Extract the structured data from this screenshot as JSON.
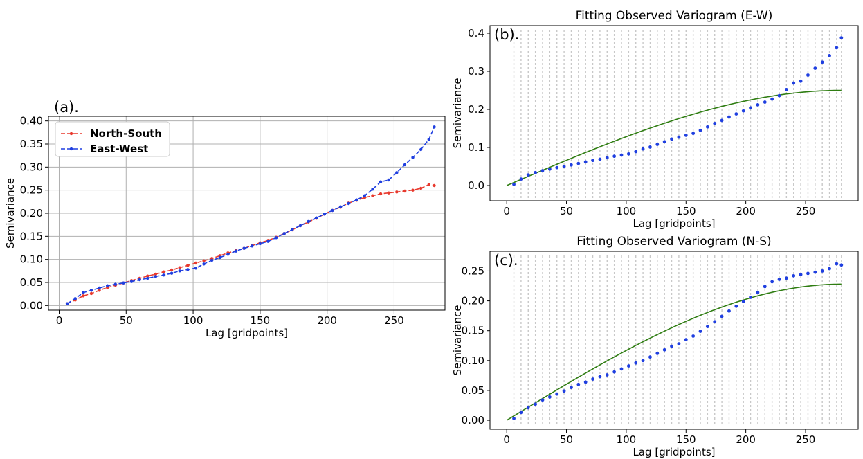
{
  "chart_data": [
    {
      "type": "line",
      "panel_label": "(a).",
      "title": "",
      "xlabel": "Lag [gridpoints]",
      "ylabel": "Semivariance",
      "xlim": [
        -8,
        288
      ],
      "ylim": [
        -0.01,
        0.41
      ],
      "xticks": [
        0,
        50,
        100,
        150,
        200,
        250
      ],
      "yticks": [
        0.0,
        0.05,
        0.1,
        0.15,
        0.2,
        0.25,
        0.3,
        0.35,
        0.4
      ],
      "ytick_decimals": 2,
      "grid": true,
      "legend": "upper-left",
      "series": [
        {
          "name": "North-South",
          "color": "#e8392d",
          "x": [
            6,
            12,
            18,
            24,
            30,
            36,
            42,
            48,
            54,
            60,
            66,
            72,
            78,
            84,
            90,
            96,
            102,
            108,
            114,
            120,
            126,
            132,
            138,
            144,
            150,
            156,
            162,
            168,
            174,
            180,
            186,
            192,
            198,
            204,
            210,
            216,
            222,
            228,
            234,
            240,
            246,
            252,
            258,
            264,
            270,
            276,
            280
          ],
          "y": [
            0.004,
            0.012,
            0.021,
            0.026,
            0.033,
            0.039,
            0.044,
            0.049,
            0.054,
            0.059,
            0.064,
            0.068,
            0.073,
            0.077,
            0.082,
            0.087,
            0.092,
            0.097,
            0.102,
            0.108,
            0.114,
            0.119,
            0.124,
            0.13,
            0.136,
            0.141,
            0.148,
            0.156,
            0.164,
            0.173,
            0.181,
            0.189,
            0.198,
            0.206,
            0.213,
            0.222,
            0.228,
            0.234,
            0.238,
            0.242,
            0.244,
            0.246,
            0.248,
            0.25,
            0.254,
            0.262,
            0.26
          ]
        },
        {
          "name": "East-West",
          "color": "#1f3fe0",
          "x": [
            6,
            12,
            18,
            24,
            30,
            36,
            42,
            48,
            54,
            60,
            66,
            72,
            78,
            84,
            90,
            96,
            102,
            108,
            114,
            120,
            126,
            132,
            138,
            144,
            150,
            156,
            162,
            168,
            174,
            180,
            186,
            192,
            198,
            204,
            210,
            216,
            222,
            228,
            234,
            240,
            246,
            252,
            258,
            264,
            270,
            276,
            280
          ],
          "y": [
            0.004,
            0.015,
            0.028,
            0.033,
            0.038,
            0.043,
            0.046,
            0.049,
            0.052,
            0.056,
            0.059,
            0.063,
            0.066,
            0.07,
            0.075,
            0.078,
            0.081,
            0.09,
            0.098,
            0.104,
            0.111,
            0.118,
            0.124,
            0.129,
            0.134,
            0.139,
            0.147,
            0.156,
            0.165,
            0.173,
            0.182,
            0.19,
            0.198,
            0.206,
            0.214,
            0.221,
            0.229,
            0.238,
            0.252,
            0.268,
            0.272,
            0.288,
            0.305,
            0.321,
            0.338,
            0.36,
            0.387
          ]
        }
      ]
    },
    {
      "type": "scatter",
      "panel_label": "(b).",
      "title": "Fitting Observed Variogram (E-W)",
      "xlabel": "Lag [gridpoints]",
      "ylabel": "Semivariance",
      "xlim": [
        -14,
        294
      ],
      "ylim": [
        -0.04,
        0.42
      ],
      "xticks": [
        0,
        50,
        100,
        150,
        200,
        250
      ],
      "yticks": [
        0.0,
        0.1,
        0.2,
        0.3,
        0.4
      ],
      "ytick_decimals": 1,
      "grid": false,
      "bin_lines_color": "#c8c8c8",
      "points": {
        "color": "#1f3fe0",
        "x": [
          6,
          12,
          18,
          24,
          30,
          36,
          42,
          48,
          54,
          60,
          66,
          72,
          78,
          84,
          90,
          96,
          102,
          108,
          114,
          120,
          126,
          132,
          138,
          144,
          150,
          156,
          162,
          168,
          174,
          180,
          186,
          192,
          198,
          204,
          210,
          216,
          222,
          228,
          234,
          240,
          246,
          252,
          258,
          264,
          270,
          276,
          280
        ],
        "y": [
          0.003,
          0.017,
          0.028,
          0.034,
          0.039,
          0.043,
          0.047,
          0.05,
          0.054,
          0.058,
          0.062,
          0.066,
          0.069,
          0.073,
          0.077,
          0.08,
          0.083,
          0.089,
          0.096,
          0.101,
          0.108,
          0.115,
          0.122,
          0.127,
          0.132,
          0.137,
          0.145,
          0.154,
          0.163,
          0.171,
          0.18,
          0.188,
          0.196,
          0.204,
          0.212,
          0.219,
          0.227,
          0.236,
          0.252,
          0.269,
          0.274,
          0.29,
          0.308,
          0.324,
          0.341,
          0.362,
          0.388
        ]
      },
      "model": {
        "color": "#2f7d12",
        "sill": 0.25,
        "range": 280
      }
    },
    {
      "type": "scatter",
      "panel_label": "(c).",
      "title": "Fitting Observed Variogram (N-S)",
      "xlabel": "Lag [gridpoints]",
      "ylabel": "Semivariance",
      "xlim": [
        -14,
        294
      ],
      "ylim": [
        -0.015,
        0.283
      ],
      "xticks": [
        0,
        50,
        100,
        150,
        200,
        250
      ],
      "yticks": [
        0.0,
        0.05,
        0.1,
        0.15,
        0.2,
        0.25
      ],
      "ytick_decimals": 2,
      "grid": false,
      "bin_lines_color": "#c8c8c8",
      "points": {
        "color": "#1f3fe0",
        "x": [
          6,
          12,
          18,
          24,
          30,
          36,
          42,
          48,
          54,
          60,
          66,
          72,
          78,
          84,
          90,
          96,
          102,
          108,
          114,
          120,
          126,
          132,
          138,
          144,
          150,
          156,
          162,
          168,
          174,
          180,
          186,
          192,
          198,
          204,
          210,
          216,
          222,
          228,
          234,
          240,
          246,
          252,
          258,
          264,
          270,
          276,
          280
        ],
        "y": [
          0.003,
          0.013,
          0.021,
          0.027,
          0.034,
          0.039,
          0.044,
          0.049,
          0.055,
          0.06,
          0.064,
          0.069,
          0.073,
          0.076,
          0.081,
          0.086,
          0.091,
          0.096,
          0.1,
          0.106,
          0.112,
          0.118,
          0.124,
          0.128,
          0.135,
          0.141,
          0.149,
          0.157,
          0.165,
          0.174,
          0.183,
          0.191,
          0.199,
          0.206,
          0.214,
          0.224,
          0.232,
          0.236,
          0.238,
          0.242,
          0.244,
          0.246,
          0.248,
          0.25,
          0.254,
          0.262,
          0.26
        ]
      },
      "model": {
        "color": "#2f7d12",
        "sill": 0.228,
        "range": 280
      }
    }
  ]
}
